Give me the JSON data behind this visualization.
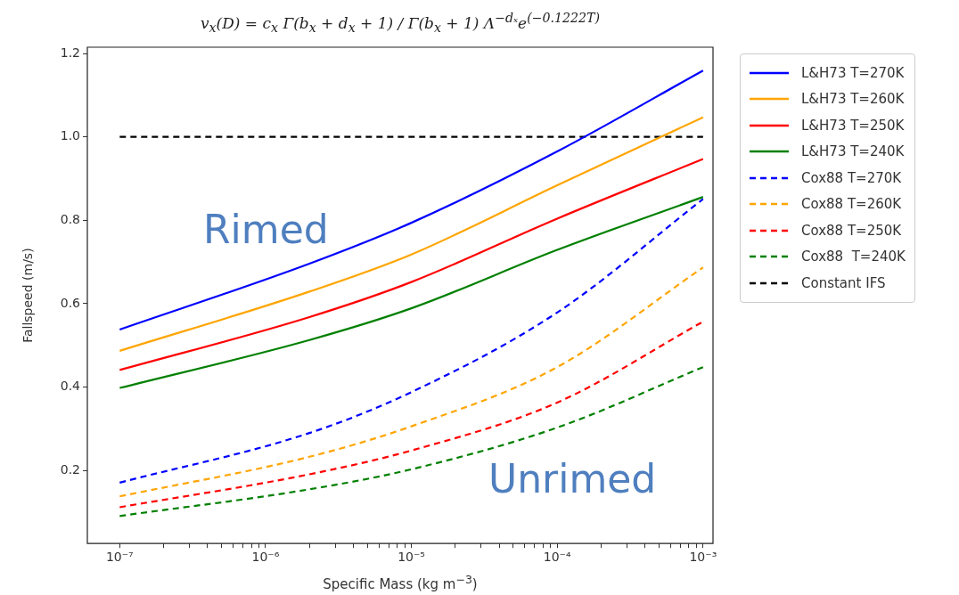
{
  "chart_data": {
    "type": "line",
    "title": "v$_{x}$(D) = c$_{x}$ Γ(b$_{x}$ + d$_{x}$ + 1) / Γ(b$_{x}$ + 1) Λ$^{−dₓ}$e$^{(−0.1222T)}$",
    "xlabel": "Specific Mass (kg m$^{−3}$)",
    "ylabel": "Fallspeed (m/s)",
    "log": "x",
    "grid": false,
    "legend": "right",
    "marker": "none",
    "xlim": [
      6.1e-08,
      0.00117
    ],
    "ylim": [
      0.025,
      1.215
    ],
    "xticks": [
      {
        "value": 1e-07,
        "label": "10⁻⁷"
      },
      {
        "value": 2e-07,
        "label": null
      },
      {
        "value": 3e-07,
        "label": null
      },
      {
        "value": 4e-07,
        "label": null
      },
      {
        "value": 5e-07,
        "label": null
      },
      {
        "value": 6e-07,
        "label": null
      },
      {
        "value": 7e-07,
        "label": null
      },
      {
        "value": 8e-07,
        "label": null
      },
      {
        "value": 9e-07,
        "label": null
      },
      {
        "value": 1e-06,
        "label": "10⁻⁶"
      },
      {
        "value": 2e-06,
        "label": null
      },
      {
        "value": 3e-06,
        "label": null
      },
      {
        "value": 4e-06,
        "label": null
      },
      {
        "value": 5e-06,
        "label": null
      },
      {
        "value": 6e-06,
        "label": null
      },
      {
        "value": 7e-06,
        "label": null
      },
      {
        "value": 8e-06,
        "label": null
      },
      {
        "value": 9e-06,
        "label": null
      },
      {
        "value": 1e-05,
        "label": "10⁻⁵"
      },
      {
        "value": 2e-05,
        "label": null
      },
      {
        "value": 3e-05,
        "label": null
      },
      {
        "value": 4e-05,
        "label": null
      },
      {
        "value": 5e-05,
        "label": null
      },
      {
        "value": 6e-05,
        "label": null
      },
      {
        "value": 7e-05,
        "label": null
      },
      {
        "value": 8e-05,
        "label": null
      },
      {
        "value": 9e-05,
        "label": null
      },
      {
        "value": 0.0001,
        "label": "10⁻⁴"
      },
      {
        "value": 0.0002,
        "label": null
      },
      {
        "value": 0.0003,
        "label": null
      },
      {
        "value": 0.0004,
        "label": null
      },
      {
        "value": 0.0005,
        "label": null
      },
      {
        "value": 0.0006,
        "label": null
      },
      {
        "value": 0.0007,
        "label": null
      },
      {
        "value": 0.0008,
        "label": null
      },
      {
        "value": 0.0009,
        "label": null
      },
      {
        "value": 0.001,
        "label": "10⁻³"
      }
    ],
    "yticks": [
      0.2,
      0.4,
      0.6,
      0.8,
      {
        "value": 1,
        "label": "1.0"
      },
      1.2
    ],
    "x": [
      1e-07,
      2e-06,
      1e-05,
      0.0001,
      0.001
    ],
    "series": [
      {
        "name": "L&H73 T=270K",
        "color": "#0000ff",
        "line_style": "solid",
        "values": [
          0.538,
          0.696,
          0.794,
          0.965,
          1.159
        ]
      },
      {
        "name": "L&H73 T=260K",
        "color": "#ffa500",
        "line_style": "solid",
        "values": [
          0.487,
          0.629,
          0.718,
          0.884,
          1.047
        ]
      },
      {
        "name": "L&H73 T=250K",
        "color": "#ff0000",
        "line_style": "solid",
        "values": [
          0.441,
          0.568,
          0.652,
          0.804,
          0.947
        ]
      },
      {
        "name": "L&H73 T=240K",
        "color": "#008000",
        "line_style": "solid",
        "values": [
          0.398,
          0.513,
          0.589,
          0.729,
          0.856
        ]
      },
      {
        "name": "Cox88 T=270K",
        "color": "#0000ff",
        "line_style": "dashed",
        "values": [
          0.171,
          0.29,
          0.388,
          0.579,
          0.851
        ]
      },
      {
        "name": "Cox88 T=260K",
        "color": "#ffa500",
        "line_style": "dashed",
        "values": [
          0.138,
          0.233,
          0.306,
          0.448,
          0.687
        ]
      },
      {
        "name": "Cox88 T=250K",
        "color": "#ff0000",
        "line_style": "dashed",
        "values": [
          0.112,
          0.191,
          0.248,
          0.363,
          0.557
        ]
      },
      {
        "name": "Cox88  T=240K",
        "color": "#008000",
        "line_style": "dashed",
        "values": [
          0.091,
          0.155,
          0.203,
          0.303,
          0.448
        ]
      },
      {
        "name": "Constant IFS",
        "color": "#000000",
        "line_style": "dashed",
        "values": [
          1,
          1,
          1,
          1,
          1
        ]
      }
    ],
    "annotations": [
      "Rimed",
      "Unrimed"
    ]
  }
}
